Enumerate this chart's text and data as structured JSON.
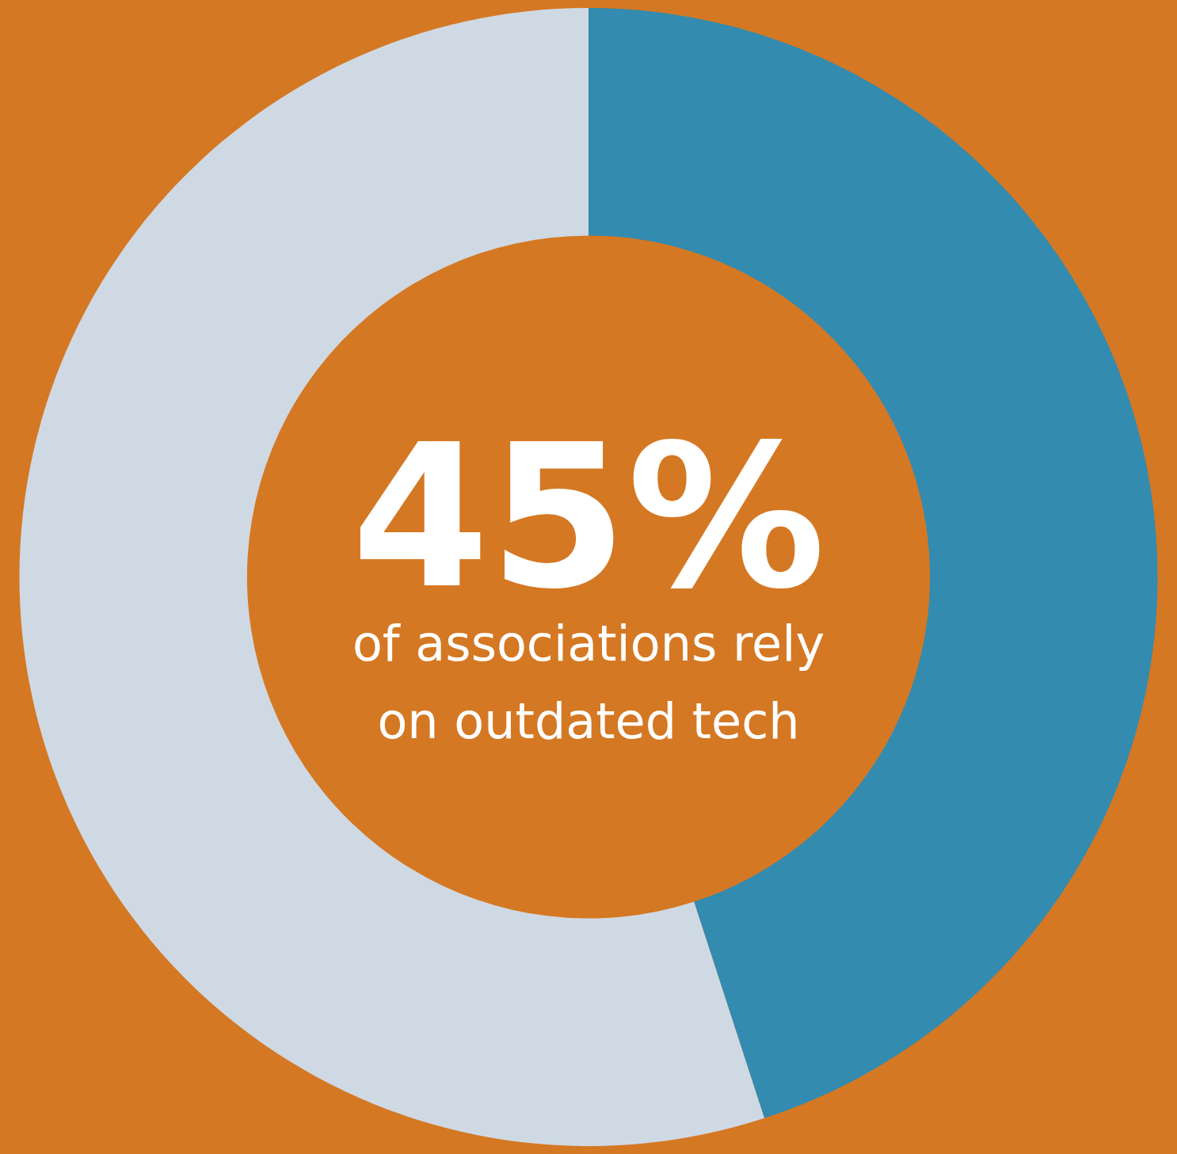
{
  "chart_data": {
    "type": "donut",
    "categories": [
      null,
      null
    ],
    "values": [
      45,
      55
    ],
    "colors": [
      "#338bb0",
      "#cfd9e4"
    ],
    "value_labels": [
      "45%",
      null
    ],
    "annotations": [
      "of associations rely on outdated tech"
    ],
    "legend": false
  }
}
